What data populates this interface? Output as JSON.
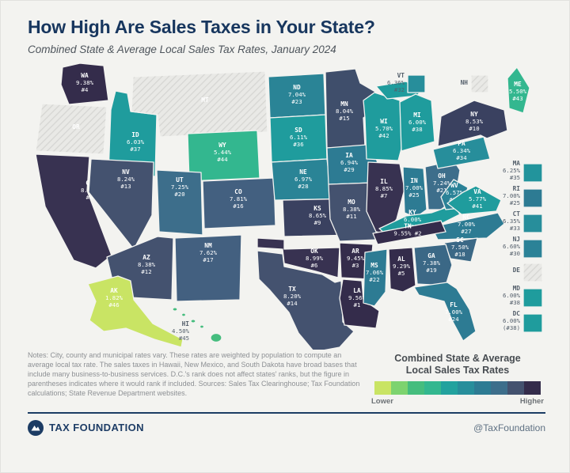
{
  "chart_data": {
    "type": "heatmap",
    "subtype": "us-state-choropleth-map",
    "title": "How High Are Sales Taxes in Your State?",
    "subtitle": "Combined State & Average Local Sales Tax Rates, January 2024",
    "unit": "combined state + average local sales tax rate (%)",
    "legend": {
      "title_line1": "Combined State & Average",
      "title_line2": "Local Sales Tax Rates",
      "lower_label": "Lower",
      "higher_label": "Higher",
      "colors": [
        "#c9e464",
        "#7dd36f",
        "#45bd7e",
        "#33b78f",
        "#22a29e",
        "#278e9b",
        "#2d7b93",
        "#3d6e8b",
        "#44526f",
        "#342c4b"
      ]
    },
    "states": [
      {
        "abbr": "AK",
        "rate": "1.82%",
        "rank": "#46",
        "color": "#c9e464",
        "text_color": "#33424d"
      },
      {
        "abbr": "AL",
        "rate": "9.29%",
        "rank": "#5",
        "color": "#342c4b"
      },
      {
        "abbr": "AR",
        "rate": "9.45%",
        "rank": "#3",
        "color": "#342c4b"
      },
      {
        "abbr": "AZ",
        "rate": "8.38%",
        "rank": "#12",
        "color": "#44526f"
      },
      {
        "abbr": "CA",
        "rate": "8.85%",
        "rank": "#8",
        "color": "#383251"
      },
      {
        "abbr": "CO",
        "rate": "7.81%",
        "rank": "#16",
        "color": "#436080"
      },
      {
        "abbr": "CT",
        "rate": "6.35%",
        "rank": "#33",
        "color": "#278e9b"
      },
      {
        "abbr": "DC",
        "rate": "6.00%",
        "rank": "(#38)",
        "color": "#1f9c9d"
      },
      {
        "abbr": "DE",
        "rate": "",
        "rank": "",
        "color": "none"
      },
      {
        "abbr": "FL",
        "rate": "7.00%",
        "rank": "#24",
        "color": "#2d7b93"
      },
      {
        "abbr": "GA",
        "rate": "7.38%",
        "rank": "#19",
        "color": "#3b6886"
      },
      {
        "abbr": "HI",
        "rate": "4.50%",
        "rank": "#45",
        "color": "#45bd7e"
      },
      {
        "abbr": "IA",
        "rate": "6.94%",
        "rank": "#29",
        "color": "#2d7b93"
      },
      {
        "abbr": "ID",
        "rate": "6.03%",
        "rank": "#37",
        "color": "#1f9c9d"
      },
      {
        "abbr": "IL",
        "rate": "8.85%",
        "rank": "#7",
        "color": "#383251"
      },
      {
        "abbr": "IN",
        "rate": "7.00%",
        "rank": "#25",
        "color": "#2d7b93"
      },
      {
        "abbr": "KS",
        "rate": "8.65%",
        "rank": "#9",
        "color": "#3a4160"
      },
      {
        "abbr": "KY",
        "rate": "6.00%",
        "rank": "#38",
        "color": "#1f9c9d"
      },
      {
        "abbr": "LA",
        "rate": "9.56%",
        "rank": "#1",
        "color": "#342c4b"
      },
      {
        "abbr": "MA",
        "rate": "6.25%",
        "rank": "#35",
        "color": "#22949c"
      },
      {
        "abbr": "MD",
        "rate": "6.00%",
        "rank": "#38",
        "color": "#1f9c9d"
      },
      {
        "abbr": "ME",
        "rate": "5.50%",
        "rank": "#43",
        "color": "#33b78f"
      },
      {
        "abbr": "MI",
        "rate": "6.00%",
        "rank": "#38",
        "color": "#1f9c9d"
      },
      {
        "abbr": "MN",
        "rate": "8.04%",
        "rank": "#15",
        "color": "#3f4e6b"
      },
      {
        "abbr": "MO",
        "rate": "8.38%",
        "rank": "#11",
        "color": "#44526f"
      },
      {
        "abbr": "MS",
        "rate": "7.06%",
        "rank": "#22",
        "color": "#2d7b93"
      },
      {
        "abbr": "MT",
        "rate": "",
        "rank": "",
        "color": "none"
      },
      {
        "abbr": "NC",
        "rate": "7.00%",
        "rank": "#27",
        "color": "#2d7b93"
      },
      {
        "abbr": "ND",
        "rate": "7.04%",
        "rank": "#23",
        "color": "#2a8496"
      },
      {
        "abbr": "NE",
        "rate": "6.97%",
        "rank": "#28",
        "color": "#2a8496"
      },
      {
        "abbr": "NH",
        "rate": "",
        "rank": "",
        "color": "none"
      },
      {
        "abbr": "NJ",
        "rate": "6.60%",
        "rank": "#30",
        "color": "#2b8297"
      },
      {
        "abbr": "NM",
        "rate": "7.62%",
        "rank": "#17",
        "color": "#436080"
      },
      {
        "abbr": "NV",
        "rate": "8.24%",
        "rank": "#13",
        "color": "#44526f"
      },
      {
        "abbr": "NY",
        "rate": "8.53%",
        "rank": "#10",
        "color": "#3a4160"
      },
      {
        "abbr": "OH",
        "rate": "7.24%",
        "rank": "#21",
        "color": "#3d6e8b"
      },
      {
        "abbr": "OK",
        "rate": "8.99%",
        "rank": "#6",
        "color": "#383251"
      },
      {
        "abbr": "OR",
        "rate": "",
        "rank": "",
        "color": "none"
      },
      {
        "abbr": "PA",
        "rate": "6.34%",
        "rank": "#34",
        "color": "#278e9b"
      },
      {
        "abbr": "RI",
        "rate": "7.00%",
        "rank": "#25",
        "color": "#2d7b93"
      },
      {
        "abbr": "SC",
        "rate": "7.50%",
        "rank": "#18",
        "color": "#3b6886"
      },
      {
        "abbr": "SD",
        "rate": "6.11%",
        "rank": "#36",
        "color": "#1f9c9d"
      },
      {
        "abbr": "TN",
        "rate": "9.55%",
        "rank": "#2",
        "color": "#342c4b"
      },
      {
        "abbr": "TX",
        "rate": "8.20%",
        "rank": "#14",
        "color": "#44526f"
      },
      {
        "abbr": "UT",
        "rate": "7.25%",
        "rank": "#20",
        "color": "#3d6e8b"
      },
      {
        "abbr": "VA",
        "rate": "5.77%",
        "rank": "#41",
        "color": "#1f9c9d"
      },
      {
        "abbr": "VT",
        "rate": "6.36%",
        "rank": "#32",
        "color": "#278e9b"
      },
      {
        "abbr": "WA",
        "rate": "9.38%",
        "rank": "#4",
        "color": "#342c4b"
      },
      {
        "abbr": "WI",
        "rate": "5.70%",
        "rank": "#42",
        "color": "#1f9c9d"
      },
      {
        "abbr": "WV",
        "rate": "6.57%",
        "rank": "#31",
        "color": "#2b8297"
      },
      {
        "abbr": "WY",
        "rate": "5.44%",
        "rank": "#44",
        "color": "#33b78f"
      }
    ]
  },
  "notes": "Notes: City, county and municipal rates vary. These rates are weighted by population to compute an average local tax rate. The sales taxes in Hawaii, New Mexico, and South Dakota have broad bases that include many business-to-business services. D.C.'s rank does not affect states' ranks, but the figure in parentheses indicates where it would rank if included. Sources: Sales Tax Clearinghouse; Tax Foundation calculations; State Revenue Department websites.",
  "footer": {
    "brand": "TAX FOUNDATION",
    "handle": "@TaxFoundation",
    "bar_color": "#1c3c64"
  }
}
